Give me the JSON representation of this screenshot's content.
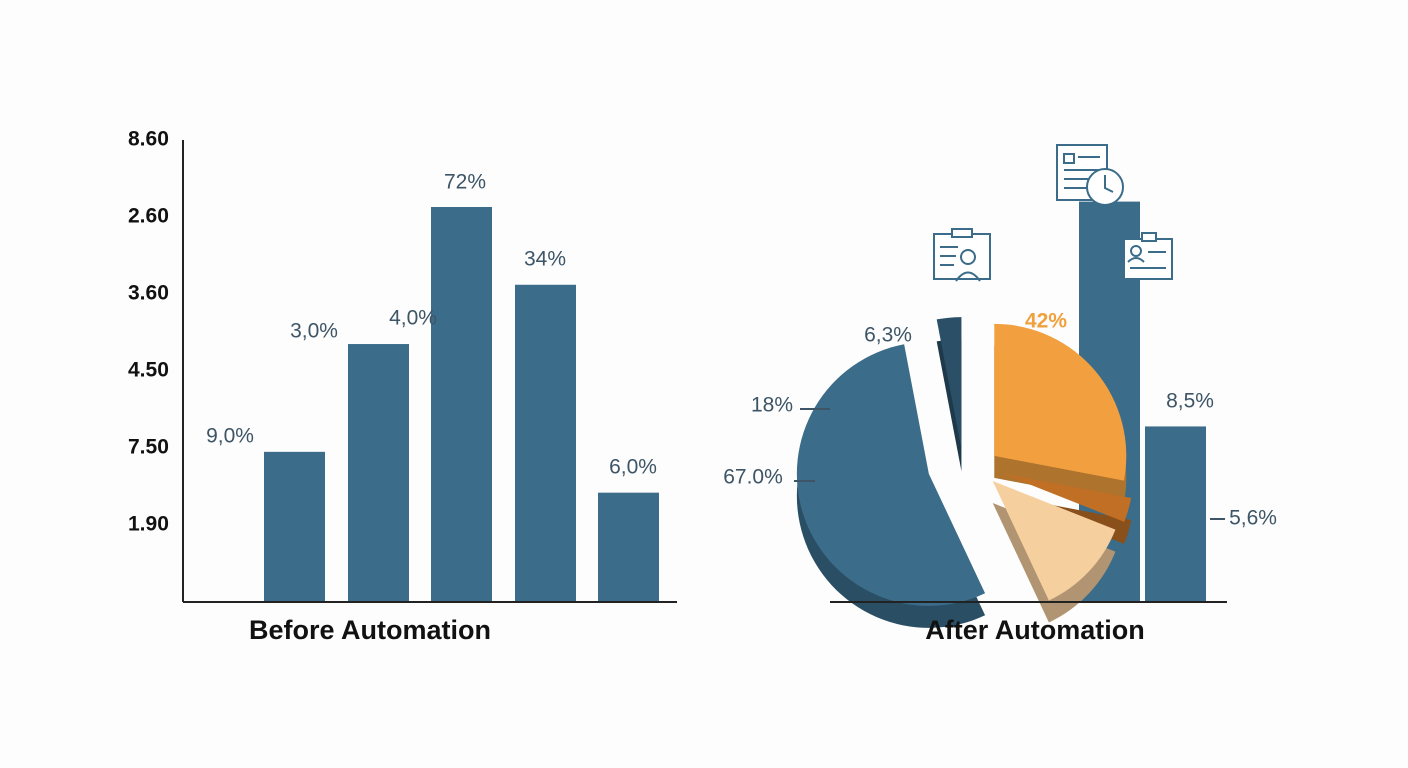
{
  "chart_data": [
    {
      "type": "bar",
      "title": "Before Automation",
      "categories": [
        null,
        null,
        null,
        null,
        null
      ],
      "values": [
        1.95,
        3.35,
        5.13,
        4.12,
        1.42
      ],
      "color": "#3b6c89",
      "ylim": [
        0,
        6
      ],
      "yticks": [
        {
          "value": 1,
          "label": "1.90"
        },
        {
          "value": 2,
          "label": "7.50"
        },
        {
          "value": 3,
          "label": "4.50"
        },
        {
          "value": 4,
          "label": "3.60"
        },
        {
          "value": 5,
          "label": "2.60"
        },
        {
          "value": 6,
          "label": "8.60"
        }
      ],
      "grid": false,
      "annotations": [
        {
          "text": "9,0%"
        },
        {
          "text": "3,0%"
        },
        {
          "text": "4,0%"
        },
        {
          "text": "72%"
        },
        {
          "text": "34%"
        },
        {
          "text": "6,0%"
        }
      ]
    },
    {
      "type": "pie",
      "title": "After Automation",
      "categories": [
        null,
        null,
        null,
        null,
        null
      ],
      "values": [
        28,
        3,
        12,
        54,
        3
      ],
      "colors": [
        "#f2a03f",
        "#c06f25",
        "#f6cf9f",
        "#3b6c89",
        "#2a4f66"
      ],
      "annotations": [
        {
          "text": "6,3%"
        },
        {
          "text": "42%",
          "color": "#f0a03c"
        },
        {
          "text": "18%"
        },
        {
          "text": "67.0%"
        },
        {
          "text": "8,5%"
        },
        {
          "text": "5,6%"
        }
      ]
    },
    {
      "type": "bar",
      "categories": [
        null,
        null
      ],
      "values": [
        5.2,
        2.28
      ],
      "color": "#3b6c89",
      "ylim": [
        0,
        6
      ]
    }
  ]
}
